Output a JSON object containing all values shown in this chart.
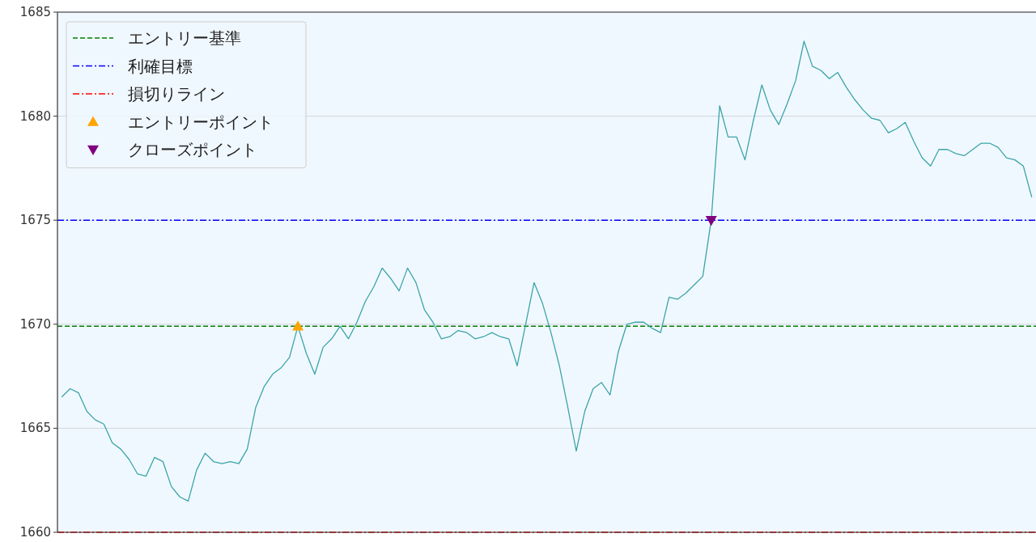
{
  "chart_data": {
    "type": "line",
    "categories": [
      null,
      null,
      null,
      null,
      null,
      null,
      null,
      null,
      null,
      null,
      null,
      null,
      null,
      null,
      null,
      null,
      null,
      null,
      null,
      null,
      null,
      null,
      null,
      null,
      null,
      null,
      null,
      null,
      null,
      null,
      null,
      null,
      null,
      null,
      null,
      null,
      null,
      null,
      null,
      null,
      null,
      null,
      null,
      null,
      null,
      null,
      null,
      null,
      null,
      null,
      null,
      null,
      null,
      null,
      null,
      null,
      null,
      null,
      null,
      null,
      null,
      null,
      null,
      null,
      null,
      null,
      null,
      null,
      null,
      null,
      null,
      null,
      null,
      null,
      null,
      null,
      null,
      null,
      null,
      null,
      null,
      null,
      null,
      null,
      null,
      null,
      null,
      null,
      null,
      null,
      null,
      null,
      null,
      null,
      null,
      null,
      null,
      null,
      null,
      null,
      null,
      null,
      null,
      null,
      null,
      null,
      null,
      null,
      null,
      null,
      null,
      null,
      null,
      null,
      null,
      null
    ],
    "ylim": [
      1660,
      1685
    ],
    "yticks": [
      1660,
      1665,
      1670,
      1675,
      1680,
      1685
    ],
    "grid": "y",
    "legend": "top left",
    "series": [
      {
        "color": "#3aa5a8",
        "marker": "none",
        "line_style": "solid",
        "values": [
          1666.5,
          1666.9,
          1666.7,
          1665.8,
          1665.4,
          1665.2,
          1664.3,
          1664.0,
          1663.5,
          1662.8,
          1662.7,
          1663.6,
          1663.4,
          1662.2,
          1661.7,
          1661.5,
          1663.0,
          1663.8,
          1663.4,
          1663.3,
          1663.4,
          1663.3,
          1664.0,
          1666.0,
          1667.0,
          1667.6,
          1667.9,
          1668.4,
          1669.9,
          1668.6,
          1667.6,
          1668.9,
          1669.3,
          1669.9,
          1669.3,
          1670.1,
          1671.1,
          1671.8,
          1672.7,
          1672.2,
          1671.6,
          1672.7,
          1672.0,
          1670.7,
          1670.1,
          1669.3,
          1669.4,
          1669.7,
          1669.6,
          1669.3,
          1669.4,
          1669.6,
          1669.4,
          1669.3,
          1668.0,
          1670.0,
          1672.0,
          1671.0,
          1669.6,
          1668.0,
          1666.0,
          1663.9,
          1665.8,
          1666.9,
          1667.2,
          1666.6,
          1668.7,
          1670.0,
          1670.1,
          1670.1,
          1669.8,
          1669.6,
          1671.3,
          1671.2,
          1671.5,
          1671.9,
          1672.3,
          1675.0,
          1680.5,
          1679.0,
          1679.0,
          1677.9,
          1679.8,
          1681.5,
          1680.3,
          1679.6,
          1680.6,
          1681.7,
          1683.6,
          1682.4,
          1682.2,
          1681.8,
          1682.1,
          1681.4,
          1680.8,
          1680.3,
          1679.9,
          1679.8,
          1679.2,
          1679.4,
          1679.7,
          1678.8,
          1678.0,
          1677.6,
          1678.4,
          1678.4,
          1678.2,
          1678.1,
          1678.4,
          1678.7,
          1678.7,
          1678.5,
          1678.0,
          1677.9,
          1677.6,
          1676.1
        ]
      },
      {
        "type": "scatter",
        "name": "エントリーポイント",
        "color": "#ffa500",
        "marker": "triangle",
        "values": [
          null,
          null,
          null,
          null,
          null,
          null,
          null,
          null,
          null,
          null,
          null,
          null,
          null,
          null,
          null,
          null,
          null,
          null,
          null,
          null,
          null,
          null,
          null,
          null,
          null,
          null,
          null,
          null,
          1669.9,
          null,
          null,
          null,
          null,
          null,
          null,
          null,
          null,
          null,
          null,
          null,
          null,
          null,
          null,
          null,
          null,
          null,
          null,
          null,
          null,
          null,
          null,
          null,
          null,
          null,
          null,
          null,
          null,
          null,
          null,
          null,
          null,
          null,
          null,
          null,
          null,
          null,
          null,
          null,
          null,
          null,
          null,
          null,
          null,
          null,
          null,
          null,
          null,
          null,
          null,
          null,
          null,
          null,
          null,
          null,
          null,
          null,
          null,
          null,
          null,
          null,
          null,
          null,
          null,
          null,
          null,
          null,
          null,
          null,
          null,
          null,
          null,
          null,
          null,
          null,
          null,
          null,
          null,
          null,
          null,
          null,
          null,
          null,
          null,
          null,
          null,
          null
        ]
      },
      {
        "type": "scatter",
        "name": "クローズポイント",
        "color": "#800080",
        "marker": "triangle_down",
        "values": [
          null,
          null,
          null,
          null,
          null,
          null,
          null,
          null,
          null,
          null,
          null,
          null,
          null,
          null,
          null,
          null,
          null,
          null,
          null,
          null,
          null,
          null,
          null,
          null,
          null,
          null,
          null,
          null,
          null,
          null,
          null,
          null,
          null,
          null,
          null,
          null,
          null,
          null,
          null,
          null,
          null,
          null,
          null,
          null,
          null,
          null,
          null,
          null,
          null,
          null,
          null,
          null,
          null,
          null,
          null,
          null,
          null,
          null,
          null,
          null,
          null,
          null,
          null,
          null,
          null,
          null,
          null,
          null,
          null,
          null,
          null,
          null,
          null,
          null,
          null,
          null,
          null,
          1675,
          null,
          null,
          null,
          null,
          null,
          null,
          null,
          null,
          null,
          null,
          null,
          null,
          null,
          null,
          null,
          null,
          null,
          null,
          null,
          null,
          null,
          null,
          null,
          null,
          null,
          null,
          null,
          null,
          null,
          null,
          null,
          null,
          null,
          null,
          null,
          null,
          null,
          null
        ]
      }
    ],
    "ref_lines": [
      {
        "axis": "y",
        "value": 1669.9,
        "label": "エントリー基準",
        "color": "#008000",
        "line_style": "dashed"
      },
      {
        "axis": "y",
        "value": 1675,
        "label": "利確目標",
        "color": "#0000ff",
        "line_style": "dashdot"
      },
      {
        "axis": "y",
        "value": 1660,
        "label": "損切りライン",
        "color": "#ff0000",
        "line_style": "dashdot"
      }
    ]
  }
}
